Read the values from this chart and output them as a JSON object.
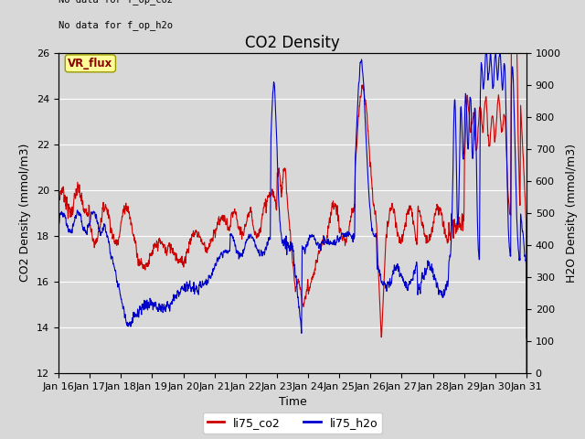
{
  "title": "CO2 Density",
  "xlabel": "Time",
  "ylabel_left": "CO2 Density (mmol/m3)",
  "ylabel_right": "H2O Density (mmol/m3)",
  "ylim_left": [
    12,
    26
  ],
  "ylim_right": [
    0,
    1000
  ],
  "yticks_left": [
    12,
    14,
    16,
    18,
    20,
    22,
    24,
    26
  ],
  "yticks_right": [
    0,
    100,
    200,
    300,
    400,
    500,
    600,
    700,
    800,
    900,
    1000
  ],
  "xticklabels": [
    "Jan 16",
    "Jan 17",
    "Jan 18",
    "Jan 19",
    "Jan 20",
    "Jan 21",
    "Jan 22",
    "Jan 23",
    "Jan 24",
    "Jan 25",
    "Jan 26",
    "Jan 27",
    "Jan 28",
    "Jan 29",
    "Jan 30",
    "Jan 31"
  ],
  "no_data_text_1": "No data for f_op_co2",
  "no_data_text_2": "No data for f_op_h2o",
  "vr_flux_label": "VR_flux",
  "legend_labels": [
    "li75_co2",
    "li75_h2o"
  ],
  "co2_color": "#cc0000",
  "h2o_color": "#0000cc",
  "fig_bg_color": "#d8d8d8",
  "axes_bg_color": "#d8d8d8",
  "grid_color": "#ffffff",
  "title_fontsize": 12,
  "axis_label_fontsize": 9,
  "tick_fontsize": 8
}
